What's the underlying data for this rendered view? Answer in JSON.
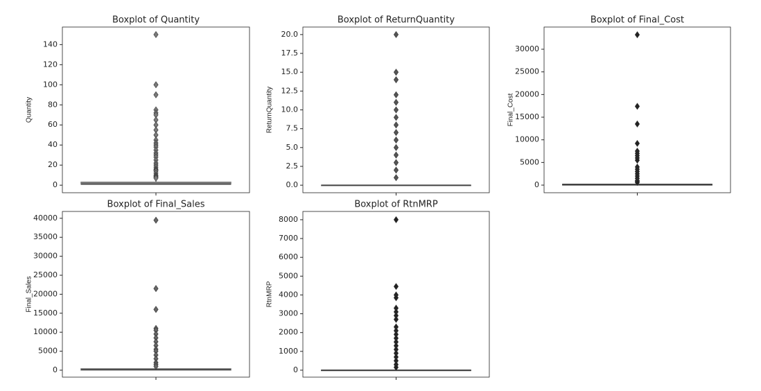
{
  "chart_data": [
    {
      "type": "box",
      "title": "Boxplot of Quantity",
      "ylabel": "Quantity",
      "color": "#7a7a7a",
      "ylim": [
        -7.5,
        157.5
      ],
      "yticks": [
        0,
        20,
        40,
        60,
        80,
        100,
        120,
        140
      ],
      "stats": {
        "whislo": 1,
        "q1": 1,
        "med": 1,
        "q3": 3,
        "whishi": 6
      },
      "outliers": [
        150,
        100,
        90,
        75,
        72,
        70,
        65,
        60,
        55,
        50,
        45,
        42,
        40,
        38,
        35,
        32,
        30,
        28,
        25,
        22,
        20,
        18,
        16,
        15,
        14,
        12,
        10,
        9,
        8,
        7
      ]
    },
    {
      "type": "box",
      "title": "Boxplot of ReturnQuantity",
      "ylabel": "ReturnQuantity",
      "color": "#555555",
      "ylim": [
        -1,
        21
      ],
      "yticks": [
        {
          "value": 0,
          "label": "0.0"
        },
        {
          "value": 2.5,
          "label": "2.5"
        },
        {
          "value": 5,
          "label": "5.0"
        },
        {
          "value": 7.5,
          "label": "7.5"
        },
        {
          "value": 10,
          "label": "10.0"
        },
        {
          "value": 12.5,
          "label": "12.5"
        },
        {
          "value": 15,
          "label": "15.0"
        },
        {
          "value": 17.5,
          "label": "17.5"
        },
        {
          "value": 20,
          "label": "20.0"
        }
      ],
      "stats": {
        "whislo": 0,
        "q1": 0,
        "med": 0,
        "q3": 0,
        "whishi": 0
      },
      "outliers": [
        1,
        2,
        3,
        4,
        5,
        6,
        7,
        8,
        9,
        10,
        11,
        12,
        14,
        15,
        20
      ]
    },
    {
      "type": "box",
      "title": "Boxplot of Final_Cost",
      "ylabel": "Final_Cost",
      "color": "#222222",
      "ylim": [
        -1680,
        34900
      ],
      "yticks": [
        0,
        5000,
        10000,
        15000,
        20000,
        25000,
        30000
      ],
      "stats": {
        "whislo": 0,
        "q1": 30,
        "med": 80,
        "q3": 180,
        "whishi": 400
      },
      "outliers": [
        33200,
        17400,
        13500,
        9200,
        7500,
        7000,
        6500,
        6000,
        5500,
        4000,
        3500,
        3000,
        2500,
        2000,
        1500,
        1000,
        800,
        600
      ]
    },
    {
      "type": "box",
      "title": "Boxplot of Final_Sales",
      "ylabel": "Final_Sales",
      "color": "#666666",
      "ylim": [
        -1830,
        41800
      ],
      "yticks": [
        0,
        5000,
        10000,
        15000,
        20000,
        25000,
        30000,
        35000,
        40000
      ],
      "stats": {
        "whislo": 0,
        "q1": 50,
        "med": 150,
        "q3": 350,
        "whishi": 800
      },
      "outliers": [
        39500,
        21500,
        16000,
        11000,
        10500,
        9500,
        8500,
        7500,
        6500,
        5500,
        5000,
        4000,
        3000,
        2000,
        1500,
        1000
      ]
    },
    {
      "type": "box",
      "title": "Boxplot of RtnMRP",
      "ylabel": "RtnMRP",
      "color": "#222222",
      "ylim": [
        -370,
        8440
      ],
      "yticks": [
        0,
        1000,
        2000,
        3000,
        4000,
        5000,
        6000,
        7000,
        8000
      ],
      "stats": {
        "whislo": 0,
        "q1": 0,
        "med": 0,
        "q3": 0,
        "whishi": 0
      },
      "outliers": [
        8000,
        4450,
        4000,
        3850,
        3300,
        3100,
        2900,
        2700,
        2300,
        2100,
        1900,
        1700,
        1500,
        1300,
        1100,
        900,
        700,
        500,
        300,
        150
      ]
    }
  ]
}
